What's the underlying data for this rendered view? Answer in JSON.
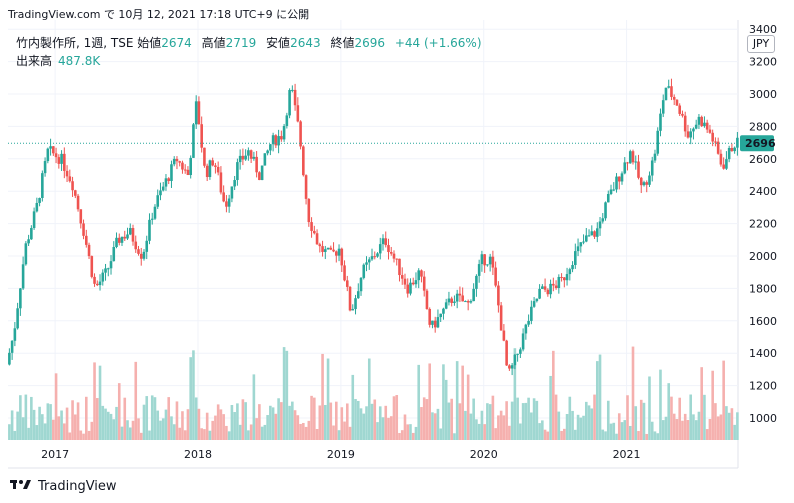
{
  "header": {
    "attribution": "TradingView.com で 10月 12, 2021 17:18 UTC+9 に公開"
  },
  "legend": {
    "symbol": "竹内製作所, 1週, TSE",
    "open_label": "始値",
    "open_value": "2674",
    "high_label": "高値",
    "high_value": "2719",
    "low_label": "安値",
    "low_value": "2643",
    "close_label": "終値",
    "close_value": "2696",
    "change": "+44 (+1.66%)",
    "volume_label": "出来高",
    "volume_value": "487.8K"
  },
  "currency": "JPY",
  "last_price_label": "2696",
  "footer": {
    "brand": "TradingView"
  },
  "colors": {
    "up": "#26a69a",
    "down": "#ef5350",
    "volume_up": "#9fd7d1",
    "volume_down": "#f5b0ae",
    "price_line": "#26a69a",
    "grid": "#f0f3fa"
  },
  "icons": {
    "logo": "tradingview-logo-icon"
  },
  "chart_data": {
    "type": "candlestick",
    "title": "竹内製作所, 1週, TSE",
    "ylim": [
      900,
      3400
    ],
    "y_ticks": [
      1000,
      1200,
      1400,
      1600,
      1800,
      2000,
      2200,
      2400,
      2600,
      2800,
      3000,
      3200,
      3400
    ],
    "x_ticks": [
      "2017",
      "2018",
      "2019",
      "2020",
      "2021"
    ],
    "x_tick_years": [
      2017,
      2018,
      2019,
      2020,
      2021
    ],
    "x_range": [
      2016.67,
      2021.78
    ],
    "last_price": 2696,
    "trend_x": [
      2016.67,
      2016.72,
      2016.8,
      2016.88,
      2016.96,
      2017.05,
      2017.13,
      2017.21,
      2017.29,
      2017.37,
      2017.45,
      2017.53,
      2017.62,
      2017.7,
      2017.78,
      2017.86,
      2017.94,
      2018.0,
      2018.06,
      2018.12,
      2018.2,
      2018.28,
      2018.36,
      2018.44,
      2018.52,
      2018.6,
      2018.66,
      2018.72,
      2018.78,
      2018.86,
      2018.94,
      2019.0,
      2019.08,
      2019.16,
      2019.24,
      2019.32,
      2019.4,
      2019.48,
      2019.56,
      2019.64,
      2019.72,
      2019.8,
      2019.9,
      2020.0,
      2020.06,
      2020.12,
      2020.18,
      2020.24,
      2020.32,
      2020.4,
      2020.48,
      2020.56,
      2020.64,
      2020.72,
      2020.8,
      2020.88,
      2020.96,
      2021.04,
      2021.12,
      2021.2,
      2021.28,
      2021.36,
      2021.44,
      2021.52,
      2021.6,
      2021.68,
      2021.76
    ],
    "trend_close": [
      1330,
      1520,
      2050,
      2300,
      2650,
      2600,
      2450,
      2150,
      1800,
      1900,
      2100,
      2150,
      2000,
      2300,
      2450,
      2600,
      2500,
      2950,
      2500,
      2600,
      2300,
      2550,
      2650,
      2500,
      2700,
      2750,
      3050,
      2750,
      2250,
      2050,
      2000,
      2050,
      1650,
      1900,
      2000,
      2100,
      1950,
      1800,
      1900,
      1550,
      1650,
      1750,
      1700,
      1980,
      1980,
      1650,
      1250,
      1380,
      1600,
      1780,
      1800,
      1850,
      2000,
      2100,
      2150,
      2350,
      2500,
      2650,
      2400,
      2600,
      3050,
      2950,
      2750,
      2850,
      2750,
      2550,
      2696
    ],
    "volume_scale_max": 800000
  }
}
